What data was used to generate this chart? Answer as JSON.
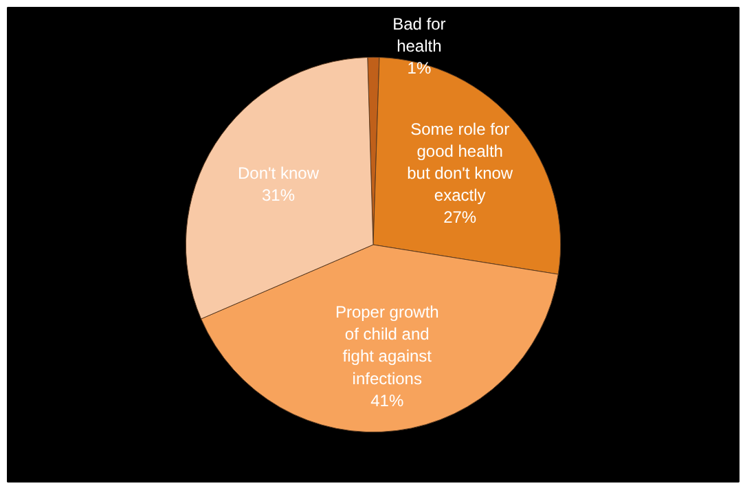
{
  "chart_data": {
    "type": "pie",
    "categories": [
      "Bad for health",
      "Some role for good health but don't know exactly",
      "Proper growth of child and fight against infections",
      "Don't know"
    ],
    "values": [
      1,
      27,
      41,
      31
    ],
    "colors": [
      "#c0601a",
      "#e3801f",
      "#f7a35c",
      "#f8c9a6"
    ],
    "value_labels": [
      "1%",
      "27%",
      "41%",
      "31%"
    ]
  }
}
